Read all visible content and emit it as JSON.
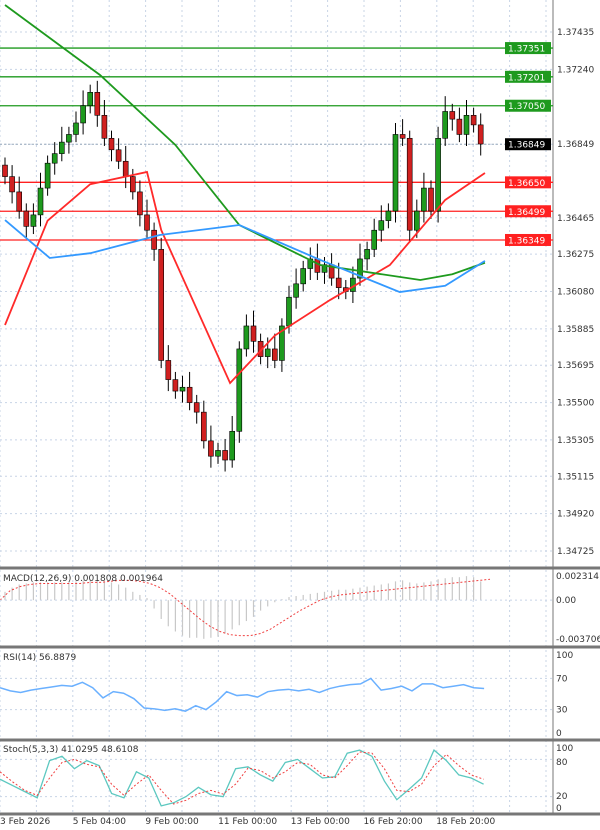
{
  "chart_data": {
    "type": "candlestick",
    "price_axis": {
      "ticks": [
        "1.37435",
        "1.37240",
        "1.36849",
        "1.36465",
        "1.36275",
        "1.36080",
        "1.35885",
        "1.35695",
        "1.35500",
        "1.35305",
        "1.35115",
        "1.34920",
        "1.34725"
      ],
      "tick_values": [
        1.37435,
        1.3724,
        1.36849,
        1.36465,
        1.36275,
        1.3608,
        1.35885,
        1.35695,
        1.355,
        1.35305,
        1.35115,
        1.3492,
        1.34725
      ],
      "range": [
        1.3462,
        1.3757
      ]
    },
    "current_price": {
      "label": "1.36849",
      "value": 1.36849
    },
    "resistance_levels": [
      {
        "label": "1.37351",
        "value": 1.37351
      },
      {
        "label": "1.37201",
        "value": 1.37201
      },
      {
        "label": "1.37050",
        "value": 1.3705
      }
    ],
    "support_levels": [
      {
        "label": "1.36650",
        "value": 1.3665
      },
      {
        "label": "1.36499",
        "value": 1.36499
      },
      {
        "label": "1.36349",
        "value": 1.36349
      }
    ],
    "x_labels": [
      "3 Feb 2026",
      "5 Feb 04:00",
      "9 Feb 00:00",
      "11 Feb 00:00",
      "13 Feb 00:00",
      "16 Feb 20:00",
      "18 Feb 20:00"
    ],
    "closes": [
      1.3668,
      1.366,
      1.365,
      1.3642,
      1.3648,
      1.3662,
      1.3675,
      1.368,
      1.3686,
      1.369,
      1.3696,
      1.3705,
      1.3712,
      1.37,
      1.3688,
      1.3682,
      1.3676,
      1.3668,
      1.366,
      1.3648,
      1.364,
      1.363,
      1.3572,
      1.3562,
      1.3556,
      1.3558,
      1.355,
      1.3545,
      1.353,
      1.3522,
      1.3525,
      1.352,
      1.3535,
      1.3578,
      1.359,
      1.3582,
      1.3574,
      1.3578,
      1.3572,
      1.359,
      1.3605,
      1.3612,
      1.362,
      1.3625,
      1.3618,
      1.3622,
      1.3615,
      1.361,
      1.3608,
      1.3615,
      1.3625,
      1.363,
      1.364,
      1.3645,
      1.365,
      1.369,
      1.3688,
      1.364,
      1.365,
      1.3662,
      1.365,
      1.3688,
      1.3702,
      1.3698,
      1.369,
      1.37,
      1.3695,
      1.3685
    ],
    "ma_lines": [
      {
        "color": "#ff2a2a",
        "points": [
          [
            0,
            1.35905
          ],
          [
            6,
            1.3645
          ],
          [
            12,
            1.3664
          ],
          [
            20,
            1.36704
          ],
          [
            22,
            1.36401
          ],
          [
            31.7,
            1.35602
          ],
          [
            38,
            1.3585
          ],
          [
            45.8,
            1.36036
          ],
          [
            54.2,
            1.36218
          ],
          [
            62,
            1.36558
          ],
          [
            67.6,
            1.36699
          ]
        ]
      },
      {
        "color": "#1e9a1e",
        "points": [
          [
            0,
            1.37576
          ],
          [
            13.4,
            1.3721
          ],
          [
            24,
            1.36845
          ],
          [
            33,
            1.36427
          ],
          [
            44.4,
            1.36218
          ],
          [
            58.5,
            1.3614
          ],
          [
            63,
            1.3617
          ],
          [
            67.6,
            1.3623
          ]
        ]
      },
      {
        "color": "#3399ff",
        "points": [
          [
            0,
            1.36453
          ],
          [
            6.3,
            1.36255
          ],
          [
            12,
            1.3628
          ],
          [
            21.8,
            1.36375
          ],
          [
            33,
            1.36427
          ],
          [
            44.4,
            1.36245
          ],
          [
            55.6,
            1.36077
          ],
          [
            62,
            1.3611
          ],
          [
            67.6,
            1.3624
          ]
        ]
      }
    ],
    "macd": {
      "label": "MACD(12,26,9) 0.001808 0.001964",
      "ticks": [
        "0.002314",
        "0.00",
        "-0.003706"
      ],
      "range": [
        -0.0041,
        0.0026
      ],
      "histogram": [
        0.0008,
        0.0012,
        0.0015,
        0.0016,
        0.0017,
        0.0017,
        0.0017,
        0.0017,
        0.0017,
        0.0018,
        0.0018,
        0.0019,
        0.002,
        0.0019,
        0.0018,
        0.0017,
        0.0015,
        0.0012,
        0.0008,
        0.0005,
        0.0002,
        -0.0008,
        -0.0018,
        -0.0025,
        -0.003,
        -0.0034,
        -0.0036,
        -0.0036,
        -0.0037,
        -0.0036,
        -0.0035,
        -0.0032,
        -0.0028,
        -0.0024,
        -0.002,
        -0.0016,
        -0.001,
        -0.0006,
        -0.0002,
        0.0001,
        0.0003,
        0.0004,
        0.0005,
        0.0006,
        0.0007,
        0.0008,
        0.0009,
        0.001,
        0.001,
        0.0011,
        0.0012,
        0.0013,
        0.0014,
        0.0015,
        0.0016,
        0.0018,
        0.0019,
        0.0017,
        0.0016,
        0.0017,
        0.0018,
        0.002,
        0.0021,
        0.0022,
        0.0022,
        0.0023,
        0.0022,
        0.0018
      ],
      "signal": [
        0.0,
        0.0009,
        0.0013,
        0.0015,
        0.0016,
        0.0016,
        0.0016,
        0.0016,
        0.0016,
        0.0017,
        0.0017,
        0.0018,
        0.0019,
        0.0019,
        0.0018,
        0.0016,
        0.0012,
        0.0006,
        -0.0002,
        -0.001,
        -0.0018,
        -0.0025,
        -0.003,
        -0.0033,
        -0.0034,
        -0.0034,
        -0.0032,
        -0.0028,
        -0.0022,
        -0.0016,
        -0.001,
        -0.0005,
        0.0,
        0.0003,
        0.0005,
        0.0006,
        0.0007,
        0.0008,
        0.0009,
        0.001,
        0.0011,
        0.0012,
        0.0013,
        0.0014,
        0.0015,
        0.0016,
        0.0017,
        0.0018,
        0.0019,
        0.002
      ]
    },
    "rsi": {
      "label": "RSI(14) 56.8879",
      "ticks": [
        "100",
        "70",
        "30",
        "0"
      ],
      "values": [
        58,
        54,
        52,
        55,
        57,
        59,
        61,
        60,
        65,
        58,
        45,
        53,
        51,
        44,
        32,
        31,
        29,
        31,
        28,
        35,
        30,
        40,
        53,
        48,
        49,
        46,
        53,
        55,
        56,
        54,
        56,
        52,
        57,
        60,
        62,
        63,
        70,
        55,
        57,
        60,
        54,
        63,
        63,
        58,
        60,
        62,
        58,
        57
      ]
    },
    "stoch": {
      "label": "Stoch(5,3,3) 41.0295 48.6108",
      "ticks": [
        "100",
        "80",
        "20",
        "0"
      ],
      "main": [
        48,
        38,
        28,
        18,
        78,
        85,
        65,
        78,
        70,
        25,
        18,
        60,
        50,
        5,
        10,
        20,
        35,
        23,
        20,
        65,
        68,
        55,
        45,
        75,
        80,
        65,
        50,
        52,
        90,
        95,
        85,
        45,
        15,
        32,
        50,
        95,
        78,
        55,
        50,
        40
      ],
      "signal": [
        60,
        44,
        30,
        22,
        50,
        75,
        80,
        72,
        68,
        40,
        22,
        40,
        55,
        30,
        8,
        14,
        25,
        30,
        24,
        40,
        66,
        62,
        50,
        60,
        75,
        72,
        55,
        50,
        70,
        92,
        90,
        65,
        30,
        28,
        40,
        70,
        88,
        70,
        55,
        48
      ]
    }
  }
}
